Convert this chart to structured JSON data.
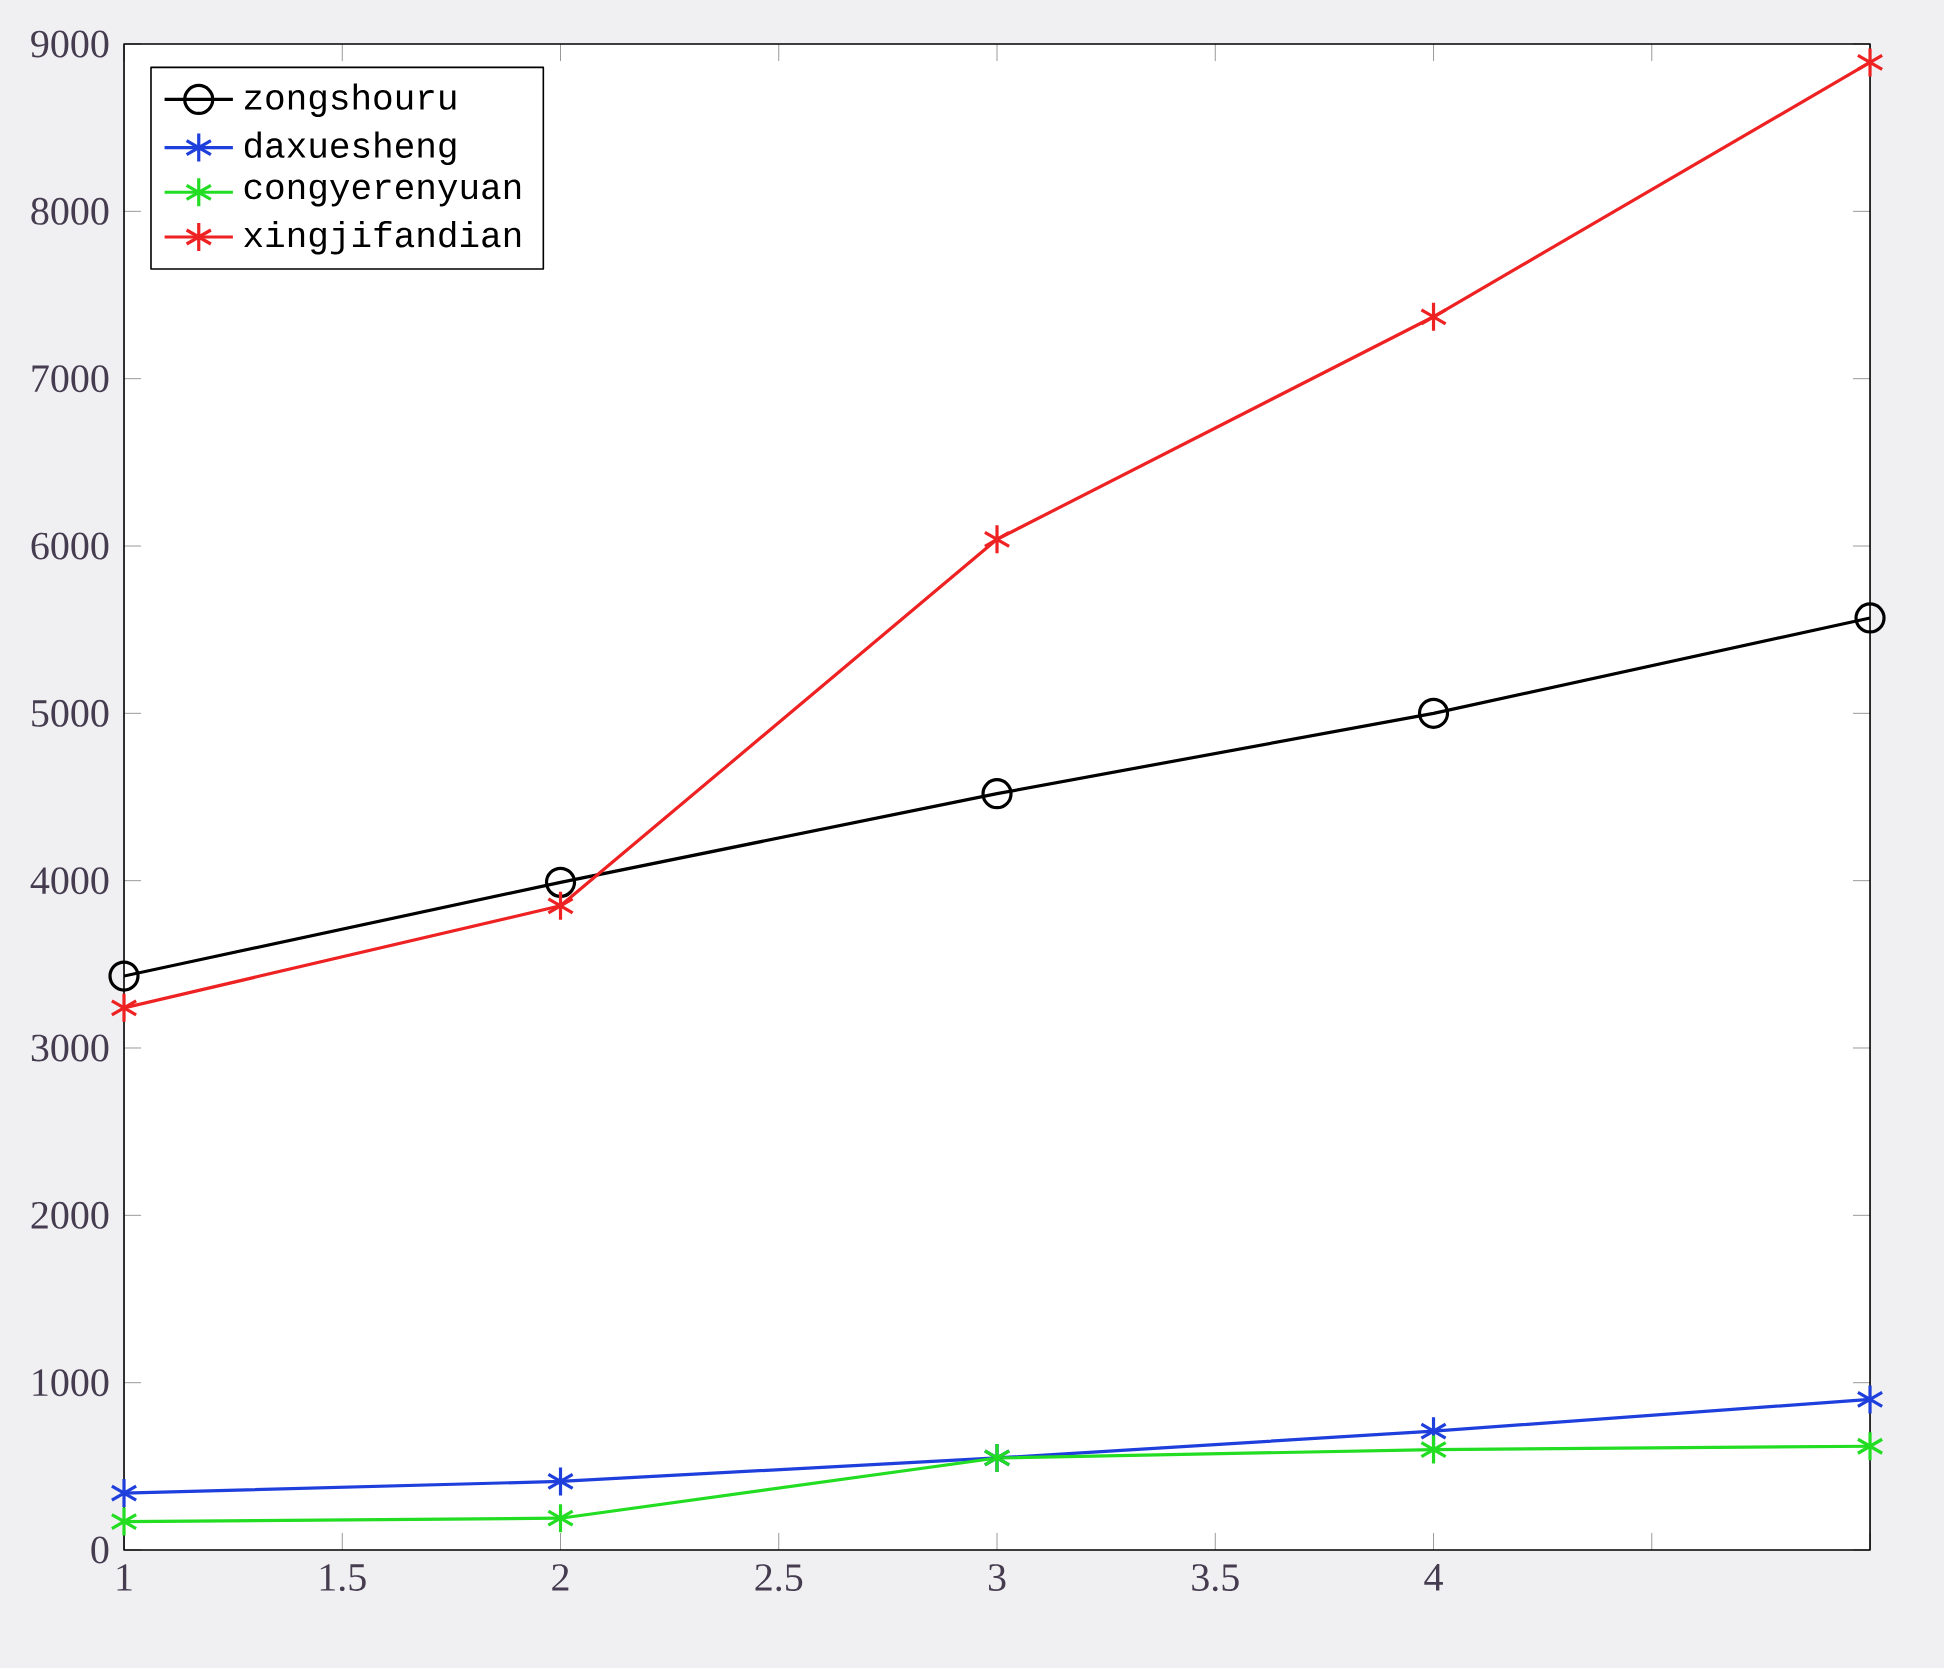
{
  "chart_data": {
    "type": "line",
    "x": [
      1,
      2,
      3,
      4,
      5
    ],
    "series": [
      {
        "name": "zongshouru",
        "color": "#000000",
        "marker": "circle",
        "values": [
          3430,
          3990,
          4520,
          5000,
          5570
        ]
      },
      {
        "name": "daxuesheng",
        "color": "#1f3fdc",
        "marker": "cross",
        "values": [
          340,
          410,
          550,
          710,
          900
        ]
      },
      {
        "name": "congyerenyuan",
        "color": "#22dd22",
        "marker": "cross",
        "values": [
          170,
          190,
          550,
          600,
          620
        ]
      },
      {
        "name": "xingjifandian",
        "color": "#ee2222",
        "marker": "cross",
        "values": [
          3240,
          3850,
          6040,
          7370,
          8890
        ]
      }
    ],
    "xlim": [
      1,
      5
    ],
    "xticks": [
      1,
      1.5,
      2,
      2.5,
      3,
      3.5,
      4,
      {
        "value": 4.5,
        "label": null
      },
      {
        "value": 5,
        "label": null
      }
    ],
    "ylim": [
      0,
      9000
    ],
    "yticks": [
      0,
      1000,
      2000,
      3000,
      4000,
      5000,
      6000,
      7000,
      8000,
      9000
    ],
    "grid": false,
    "legend": "top left",
    "line_style": "solid"
  }
}
